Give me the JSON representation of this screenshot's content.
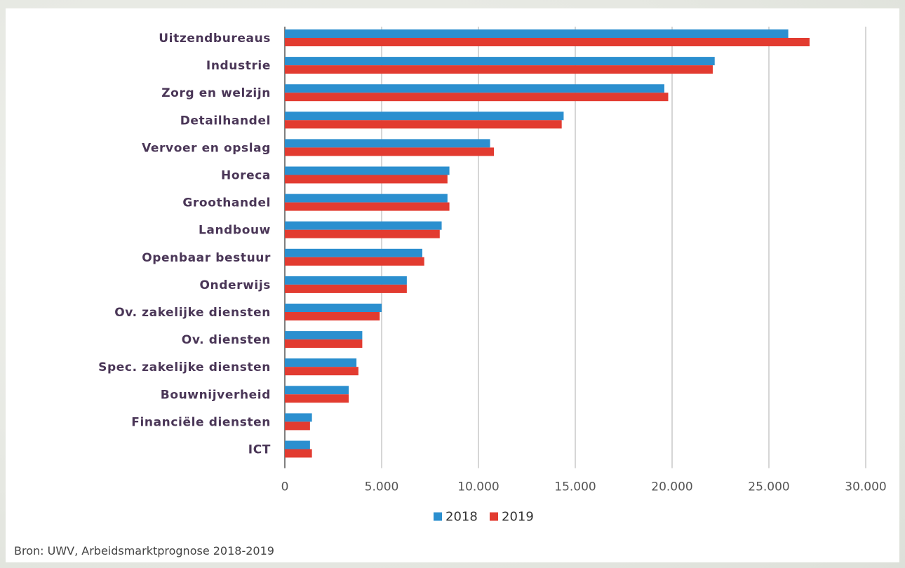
{
  "chart_data": {
    "type": "bar",
    "orientation": "horizontal",
    "categories": [
      "Uitzendbureaus",
      "Industrie",
      "Zorg en welzijn",
      "Detailhandel",
      "Vervoer en opslag",
      "Horeca",
      "Groothandel",
      "Landbouw",
      "Openbaar bestuur",
      "Onderwijs",
      "Ov. zakelijke diensten",
      "Ov. diensten",
      "Spec. zakelijke diensten",
      "Bouwnijverheid",
      "Financiële diensten",
      "ICT"
    ],
    "series": [
      {
        "name": "2018",
        "color": "#2b8fcf",
        "values": [
          26000,
          22200,
          19600,
          14400,
          10600,
          8500,
          8400,
          8100,
          7100,
          6300,
          5000,
          4000,
          3700,
          3300,
          1400,
          1300
        ]
      },
      {
        "name": "2019",
        "color": "#e23b30",
        "values": [
          27100,
          22100,
          19800,
          14300,
          10800,
          8400,
          8500,
          8000,
          7200,
          6300,
          4900,
          4000,
          3800,
          3300,
          1300,
          1400
        ]
      }
    ],
    "xlim": [
      0,
      30000
    ],
    "xticks": [
      0,
      5000,
      10000,
      15000,
      20000,
      25000,
      30000
    ],
    "xtick_labels": [
      "0",
      "5.000",
      "10.000",
      "15.000",
      "20.000",
      "25.000",
      "30.000"
    ],
    "grid": "vertical",
    "legend": "bottom-center"
  },
  "source": "Bron: UWV, Arbeidsmarktprognose 2018-2019"
}
